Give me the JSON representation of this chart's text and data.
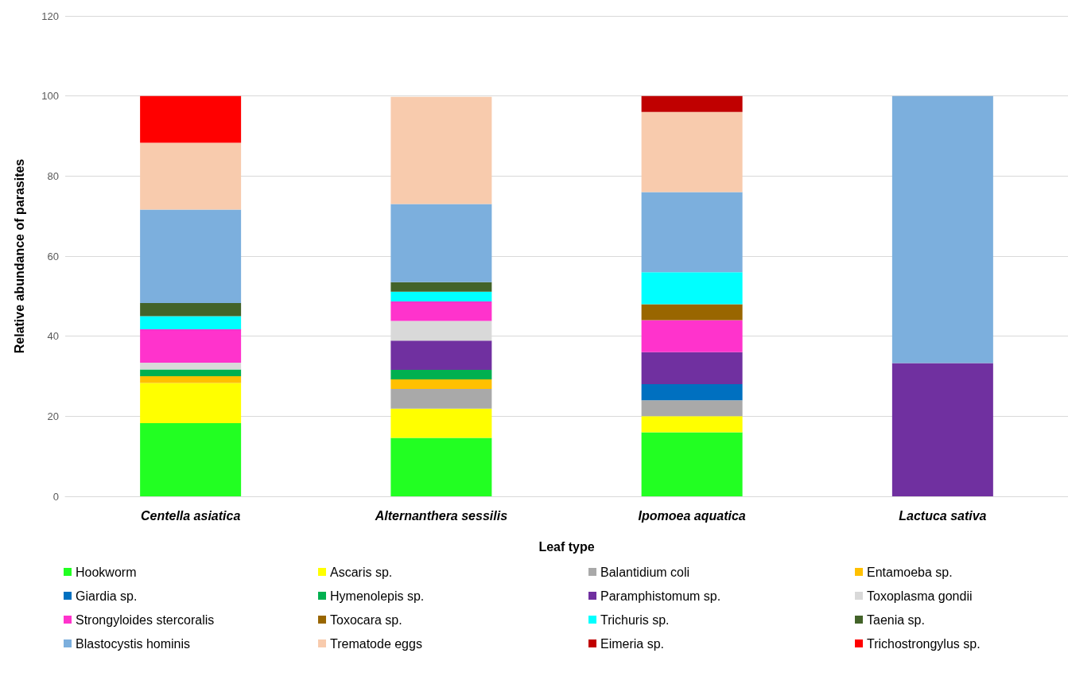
{
  "chart_data": {
    "type": "bar",
    "stacked": true,
    "xlabel": "Leaf type",
    "ylabel": "Relative abundance of parasites",
    "categories": [
      "Centella asiatica",
      "Alternanthera sessilis",
      "Ipomoea aquatica",
      "Lactuca sativa"
    ],
    "ylim": [
      0,
      120
    ],
    "yticks": [
      0,
      20,
      40,
      60,
      80,
      100,
      120
    ],
    "grid": "y",
    "legend": "bottom",
    "series": [
      {
        "name": "Hookworm",
        "color": "#22ff22",
        "values": [
          18.3,
          14.6,
          16,
          null
        ]
      },
      {
        "name": "Ascaris sp.",
        "color": "#ffff00",
        "values": [
          10,
          7.3,
          4,
          null
        ]
      },
      {
        "name": "Balantidium coli",
        "color": "#a9a9a9",
        "values": [
          null,
          4.9,
          4,
          null
        ]
      },
      {
        "name": "Entamoeba sp.",
        "color": "#ffc000",
        "values": [
          1.7,
          2.4,
          null,
          null
        ]
      },
      {
        "name": "Giardia sp.",
        "color": "#0070c0",
        "values": [
          null,
          null,
          4,
          null
        ]
      },
      {
        "name": "Hymenolepis sp.",
        "color": "#00b050",
        "values": [
          1.7,
          2.4,
          null,
          null
        ]
      },
      {
        "name": "Paramphistomum sp.",
        "color": "#7030a0",
        "values": [
          null,
          7.3,
          8,
          33.3
        ]
      },
      {
        "name": "Toxoplasma gondii",
        "color": "#d9d9d9",
        "values": [
          1.7,
          4.9,
          null,
          null
        ]
      },
      {
        "name": "Strongyloides stercoralis",
        "color": "#ff33cc",
        "values": [
          8.3,
          4.9,
          8,
          null
        ]
      },
      {
        "name": "Toxocara sp.",
        "color": "#996600",
        "values": [
          null,
          null,
          4,
          null
        ]
      },
      {
        "name": "Trichuris sp.",
        "color": "#00ffff",
        "values": [
          3.3,
          2.4,
          8,
          null
        ]
      },
      {
        "name": "Taenia sp.",
        "color": "#436329",
        "values": [
          3.3,
          2.4,
          null,
          null
        ]
      },
      {
        "name": "Blastocystis hominis",
        "color": "#7cafdd",
        "values": [
          23.3,
          19.5,
          20,
          66.7
        ]
      },
      {
        "name": "Trematode eggs",
        "color": "#f8cbad",
        "values": [
          16.7,
          26.8,
          20,
          null
        ]
      },
      {
        "name": "Eimeria sp.",
        "color": "#c00000",
        "values": [
          null,
          null,
          4,
          null
        ]
      },
      {
        "name": "Trichostrongylus sp.",
        "color": "#ff0000",
        "values": [
          11.7,
          null,
          null,
          null
        ]
      }
    ]
  }
}
